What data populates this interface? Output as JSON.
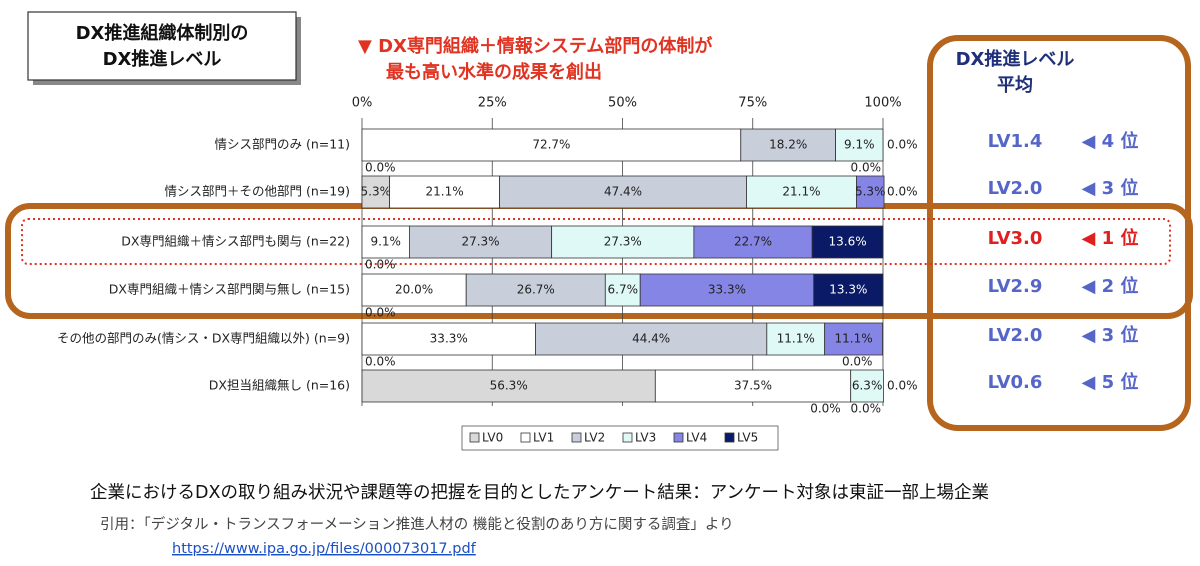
{
  "chart_data": {
    "type": "stacked-bar-horizontal",
    "title": [
      "DX推進組織体制別の",
      "DX推進レベル"
    ],
    "annotation": [
      "▼ DX専門組織＋情報システム部門の体制が",
      "最も高い水準の成果を創出"
    ],
    "categories": [
      "情シス部門のみ (n=11)",
      "情シス部門＋その他部門 (n=19)",
      "DX専門組織＋情シス部門も関与 (n=22)",
      "DX専門組織＋情シス部門関与無し (n=15)",
      "その他の部門のみ(情シス・DX専門組織以外) (n=9)",
      "DX担当組織無し (n=16)"
    ],
    "series": [
      {
        "name": "LV0",
        "color": "#d9d9d9",
        "values": [
          0.0,
          5.3,
          0.0,
          0.0,
          0.0,
          56.3
        ],
        "value_labels": [
          "0.0%",
          "5.3%",
          "0.0%",
          "0.0%",
          "0.0%",
          "56.3%"
        ]
      },
      {
        "name": "LV1",
        "color": "#ffffff",
        "values": [
          72.7,
          21.1,
          9.1,
          20.0,
          33.3,
          37.5
        ],
        "value_labels": [
          "72.7%",
          "21.1%",
          "9.1%",
          "20.0%",
          "33.3%",
          "37.5%"
        ]
      },
      {
        "name": "LV2",
        "color": "#c9cedb",
        "values": [
          18.2,
          47.4,
          27.3,
          26.7,
          44.4,
          0.0
        ],
        "value_labels": [
          "18.2%",
          "47.4%",
          "27.3%",
          "26.7%",
          "44.4%",
          "0.0%"
        ]
      },
      {
        "name": "LV3",
        "color": "#dff9f6",
        "values": [
          9.1,
          21.1,
          27.3,
          6.7,
          11.1,
          6.3
        ],
        "value_labels": [
          "9.1%",
          "21.1%",
          "27.3%",
          "6.7%",
          "11.1%",
          "6.3%"
        ]
      },
      {
        "name": "LV4",
        "color": "#8585e6",
        "values": [
          0.0,
          5.3,
          22.7,
          33.3,
          11.1,
          0.0
        ],
        "value_labels": [
          "0.0%",
          "5.3%",
          "22.7%",
          "33.3%",
          "11.1%",
          "0.0%"
        ]
      },
      {
        "name": "LV5",
        "color": "#0a1a66",
        "values": [
          0.0,
          0.0,
          13.6,
          13.3,
          0.0,
          0.0
        ],
        "value_labels": [
          "0.0%",
          "0.0%",
          "13.6%",
          "13.3%",
          "0.0%",
          "0.0%"
        ]
      }
    ],
    "xlim": [
      0,
      100
    ],
    "xticks": [
      {
        "value": 0,
        "label": "0%"
      },
      {
        "value": 25,
        "label": "25%"
      },
      {
        "value": 50,
        "label": "50%"
      },
      {
        "value": 75,
        "label": "75%"
      },
      {
        "value": 100,
        "label": "100%"
      }
    ],
    "legend": "bottom"
  },
  "summary": {
    "header": [
      "DX推進レベル",
      "平均"
    ],
    "rows": [
      {
        "level": "LV1.4",
        "rank": "◀ 4 位"
      },
      {
        "level": "LV2.0",
        "rank": "◀ 3 位"
      },
      {
        "level": "LV3.0",
        "rank": "◀ 1 位"
      },
      {
        "level": "LV2.9",
        "rank": "◀ 2 位"
      },
      {
        "level": "LV2.0",
        "rank": "◀ 3 位"
      },
      {
        "level": "LV0.6",
        "rank": "◀ 5 位"
      }
    ]
  },
  "caption": "企業におけるDXの取り組み状況や課題等の把握を目的としたアンケート結果：アンケート対象は東証一部上場企業",
  "citation": "引用：「デジタル・トランスフォーメーション推進人材の 機能と役割のあり方に関する調査」より",
  "url": "https://www.ipa.go.jp/files/000073017.pdf"
}
